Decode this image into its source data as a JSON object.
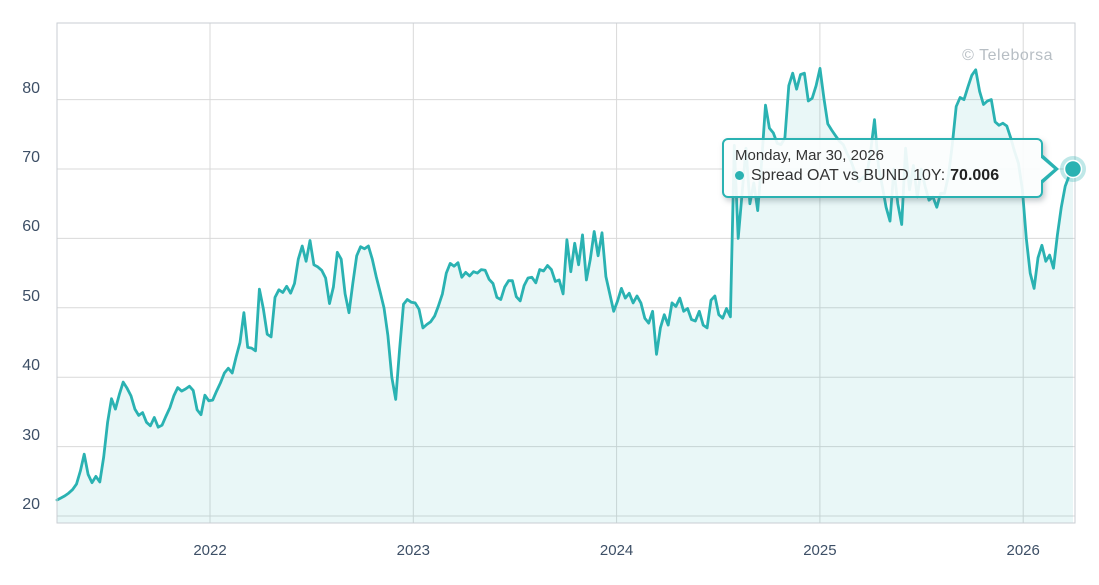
{
  "watermark": "© Teleborsa",
  "tooltip": {
    "date": "Monday, Mar 30, 2026",
    "series_label": "Spread OAT vs BUND 10Y:",
    "value": "70.006"
  },
  "colors": {
    "line": "#2ab2b2",
    "area_fill": "rgba(42,178,178,0.10)",
    "marker_halo": "rgba(42,178,178,0.30)",
    "gridline": "#d9d9d9",
    "plot_border": "#c9ced3",
    "axis_label": "#3d4f66",
    "watermark": "#b7bec4",
    "tooltip_border": "#2ab2b2"
  },
  "chart_data": {
    "type": "area",
    "title": "",
    "series_name": "Spread OAT vs BUND 10Y",
    "x_interval": "weekly",
    "x_ticks": [
      "2022",
      "2023",
      "2024",
      "2025",
      "2026"
    ],
    "y_ticks": [
      80,
      70,
      60,
      50,
      40,
      30,
      20
    ],
    "ylim": [
      17.4,
      91.0
    ],
    "grid": true,
    "legend": false,
    "last_point": {
      "label": "Monday, Mar 30, 2026",
      "value": 70.006
    },
    "series": [
      {
        "name": "Spread OAT vs BUND 10Y",
        "values": [
          22.3,
          22.6,
          22.9,
          23.3,
          23.8,
          24.6,
          26.5,
          28.9,
          26.0,
          24.8,
          25.7,
          24.9,
          28.5,
          33.5,
          36.9,
          35.4,
          37.5,
          39.3,
          38.4,
          37.3,
          35.4,
          34.5,
          34.9,
          33.5,
          33.0,
          34.2,
          32.8,
          33.1,
          34.4,
          35.6,
          37.3,
          38.5,
          38.0,
          38.3,
          38.7,
          38.1,
          35.3,
          34.6,
          37.4,
          36.6,
          36.7,
          38.0,
          39.2,
          40.6,
          41.3,
          40.6,
          42.9,
          45.0,
          49.3,
          44.3,
          44.2,
          43.8,
          52.7,
          49.9,
          46.2,
          45.8,
          51.5,
          52.6,
          52.2,
          53.1,
          52.1,
          53.5,
          57.0,
          58.9,
          56.7,
          59.7,
          56.2,
          55.9,
          55.4,
          54.3,
          50.6,
          53.0,
          58.0,
          57.0,
          52.0,
          49.3,
          53.5,
          57.5,
          58.8,
          58.5,
          58.9,
          57.0,
          54.5,
          52.3,
          50.0,
          46.0,
          40.0,
          36.8,
          44.0,
          50.5,
          51.2,
          50.8,
          50.7,
          49.8,
          47.1,
          47.6,
          48.0,
          48.8,
          50.3,
          52.0,
          55.0,
          56.4,
          56.0,
          56.5,
          54.4,
          55.1,
          54.6,
          55.2,
          55.0,
          55.5,
          55.4,
          54.1,
          53.5,
          51.5,
          51.2,
          53.0,
          53.9,
          53.9,
          51.6,
          51.0,
          53.2,
          54.3,
          54.4,
          53.6,
          55.5,
          55.3,
          56.1,
          55.5,
          53.8,
          54.0,
          52.0,
          59.8,
          55.2,
          59.3,
          56.2,
          60.5,
          54.0,
          57.0,
          61.0,
          57.5,
          60.8,
          54.5,
          52.0,
          49.5,
          51.0,
          52.8,
          51.4,
          52.1,
          50.7,
          51.7,
          50.7,
          48.5,
          47.8,
          49.5,
          43.3,
          47.1,
          49.0,
          47.5,
          50.7,
          50.2,
          51.4,
          49.5,
          49.9,
          48.3,
          48.1,
          49.5,
          47.5,
          47.1,
          51.1,
          51.7,
          49.0,
          48.5,
          49.9,
          48.7,
          73.4,
          60.0,
          66.5,
          73.0,
          65.0,
          68.0,
          64.0,
          71.0,
          79.2,
          75.9,
          75.2,
          73.7,
          73.5,
          74.5,
          82.0,
          83.8,
          81.5,
          83.6,
          83.8,
          79.8,
          80.2,
          82.0,
          84.5,
          80.2,
          76.5,
          75.6,
          74.8,
          74.0,
          73.5,
          72.2,
          71.1,
          69.5,
          68.2,
          68.8,
          69.1,
          72.5,
          77.1,
          70.5,
          67.5,
          64.5,
          62.5,
          70.0,
          65.0,
          62.0,
          73.0,
          67.0,
          70.5,
          66.0,
          70.0,
          67.5,
          65.5,
          66.0,
          64.5,
          66.5,
          66.5,
          69.0,
          73.5,
          79.0,
          80.3,
          80.0,
          81.8,
          83.5,
          84.3,
          81.2,
          79.3,
          79.8,
          80.0,
          76.8,
          76.3,
          76.6,
          76.2,
          74.5,
          72.5,
          70.8,
          67.0,
          60.0,
          55.0,
          52.8,
          57.2,
          59.0,
          56.7,
          57.6,
          55.7,
          60.5,
          64.5,
          67.5,
          69.0,
          70.006
        ]
      }
    ]
  }
}
